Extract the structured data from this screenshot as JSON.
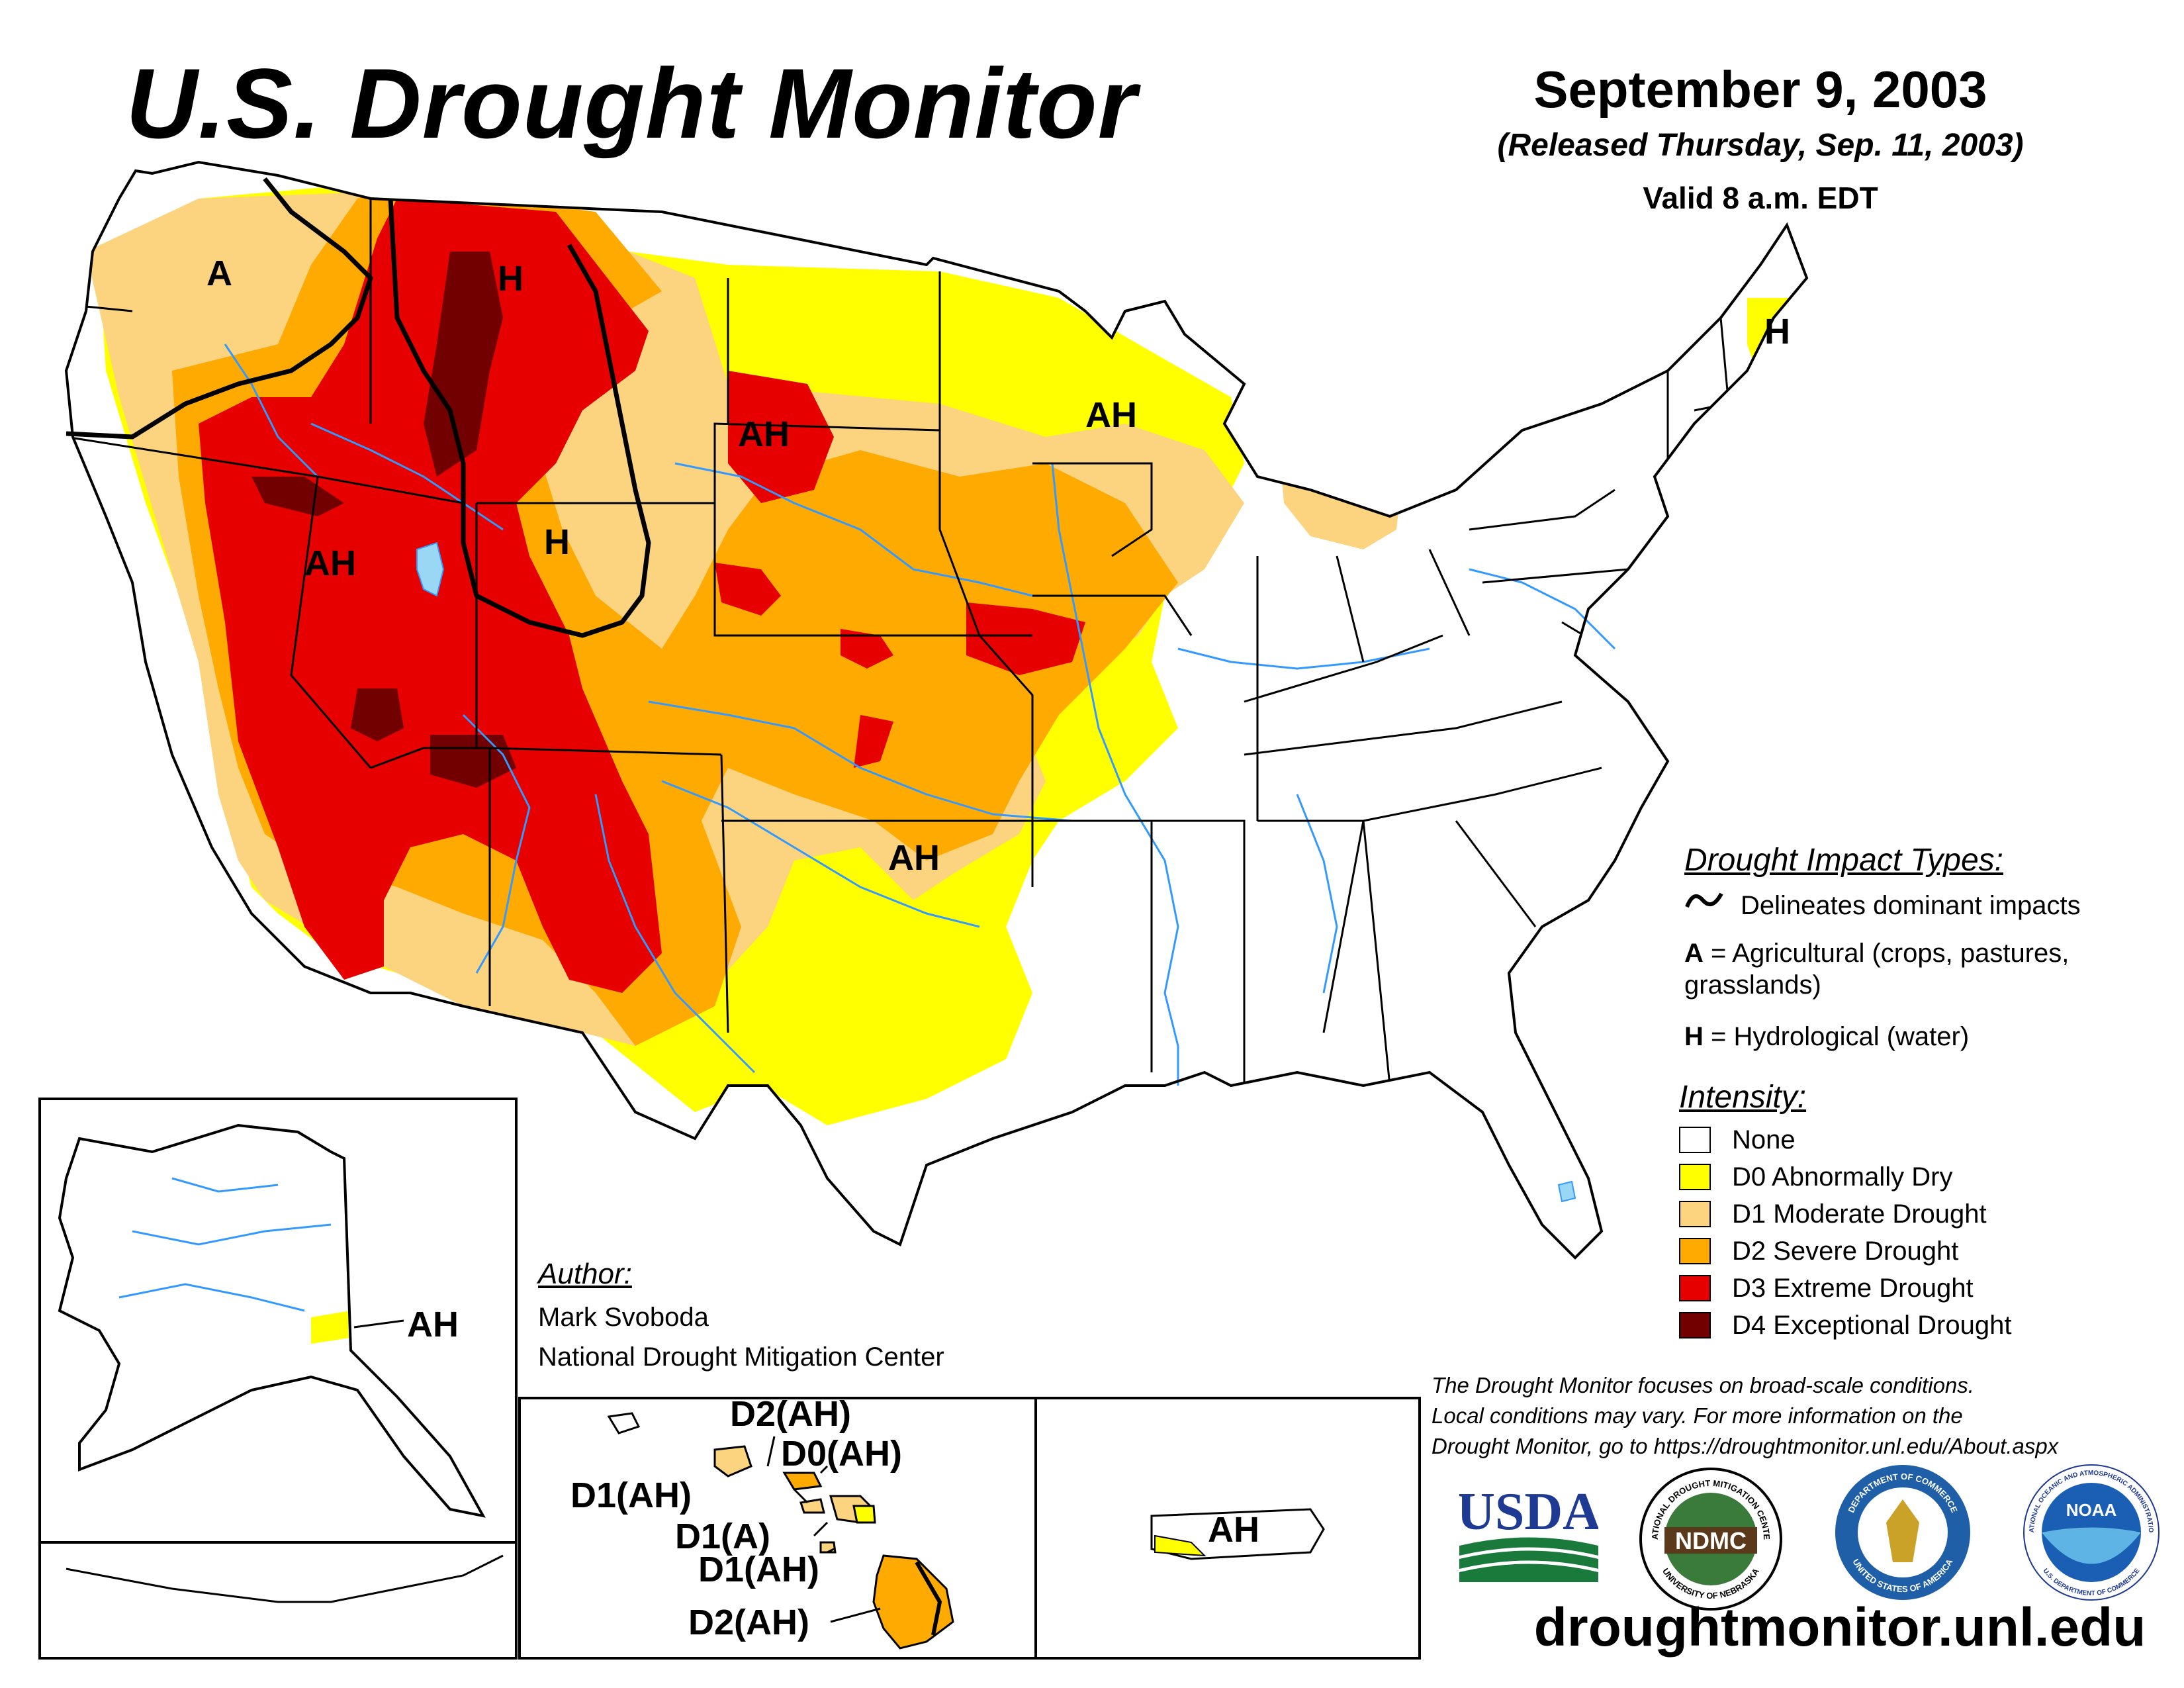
{
  "header": {
    "title": "U.S. Drought Monitor",
    "date": "September 9, 2003",
    "released": "(Released Thursday, Sep. 11, 2003)",
    "valid": "Valid 8 a.m. EDT"
  },
  "map_labels": {
    "wa_a": "A",
    "mt_h": "H",
    "id_ah": "AH",
    "wy_h": "H",
    "sd_ah": "AH",
    "wi_ah": "AH",
    "me_h": "H",
    "ok_ah": "AH",
    "ak_ah": "AH",
    "pr_ah": "AH",
    "hi_d2_top": "D2(AH)",
    "hi_d0": "D0(AH)",
    "hi_d1_left": "D1(AH)",
    "hi_d1a": "D1(A)",
    "hi_d1_mid": "D1(AH)",
    "hi_d2_bottom": "D2(AH)"
  },
  "impact_legend": {
    "heading": "Drought Impact Types:",
    "delineates": "Delineates dominant impacts",
    "a_key": "A",
    "a_desc": "= Agricultural (crops, pastures,",
    "a_desc2": "grasslands)",
    "h_key": "H",
    "h_desc": "= Hydrological (water)"
  },
  "intensity_legend": {
    "heading": "Intensity:",
    "items": [
      {
        "label": "None",
        "color": "#ffffff"
      },
      {
        "label": "D0 Abnormally Dry",
        "color": "#ffff00"
      },
      {
        "label": "D1 Moderate Drought",
        "color": "#fcd37f"
      },
      {
        "label": "D2 Severe Drought",
        "color": "#ffaa00"
      },
      {
        "label": "D3 Extreme Drought",
        "color": "#e60000"
      },
      {
        "label": "D4 Exceptional Drought",
        "color": "#730000"
      }
    ]
  },
  "author": {
    "heading": "Author:",
    "name": "Mark Svoboda",
    "org": "National Drought Mitigation Center"
  },
  "disclaimer": {
    "line1": "The Drought Monitor focuses on broad-scale conditions.",
    "line2": "Local conditions may vary. For more information on the",
    "line3": "Drought Monitor, go to https://droughtmonitor.unl.edu/About.aspx"
  },
  "logos": {
    "usda": "USDA",
    "ndmc": "NDMC",
    "ndmc_ring_top": "NATIONAL DROUGHT MITIGATION CENTER",
    "ndmc_ring_bottom": "UNIVERSITY OF NEBRASKA",
    "doc_ring_top": "DEPARTMENT OF COMMERCE",
    "doc_ring_bottom": "UNITED STATES OF AMERICA",
    "noaa": "NOAA",
    "noaa_ring_top": "NATIONAL OCEANIC AND ATMOSPHERIC ADMINISTRATION",
    "noaa_ring_bottom": "U.S. DEPARTMENT OF COMMERCE"
  },
  "website": "droughtmonitor.unl.edu",
  "colors": {
    "none": "#ffffff",
    "d0": "#ffff00",
    "d1": "#fcd37f",
    "d2": "#ffaa00",
    "d3": "#e60000",
    "d4": "#730000",
    "water": "#3399ff",
    "lake": "#9ad7f5"
  }
}
